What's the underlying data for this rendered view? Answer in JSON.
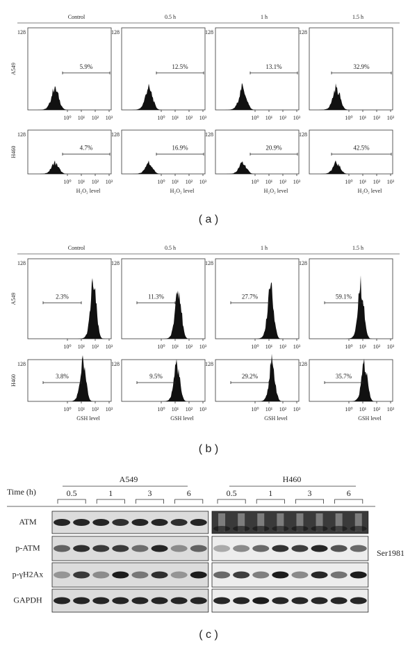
{
  "panel_a": {
    "label": "( a )",
    "columns": [
      "Control",
      "0.5 h",
      "1 h",
      "1.5 h"
    ],
    "rows": [
      "A549",
      "H460"
    ],
    "y_max_label": "128",
    "x_tick_labels": [
      "10⁰",
      "10¹",
      "10²",
      "10³"
    ],
    "x_axis_label": "H₂O₂ level",
    "percentages": [
      [
        "5.9%",
        "12.5%",
        "13.1%",
        "32.9%"
      ],
      [
        "4.7%",
        "16.9%",
        "20.9%",
        "42.5%"
      ]
    ]
  },
  "panel_b": {
    "label": "( b )",
    "columns": [
      "Control",
      "0.5 h",
      "1 h",
      "1.5 h"
    ],
    "rows": [
      "A549",
      "H460"
    ],
    "y_max_label": "128",
    "x_tick_labels": [
      "10⁰",
      "10¹",
      "10²",
      "10³"
    ],
    "x_axis_label": "GSH level",
    "percentages": [
      [
        "2.3%",
        "11.3%",
        "27.7%",
        "59.1%"
      ],
      [
        "3.8%",
        "9.5%",
        "29.2%",
        "35.7%"
      ]
    ]
  },
  "panel_c": {
    "label": "( c )",
    "time_label": "Time (h)",
    "cell_lines": [
      "A549",
      "H460"
    ],
    "time_points": [
      "0.5",
      "1",
      "3",
      "6"
    ],
    "proteins": [
      "ATM",
      "p-ATM",
      "p-γH2Ax",
      "GAPDH"
    ],
    "site_annotation": "Ser1981"
  }
}
